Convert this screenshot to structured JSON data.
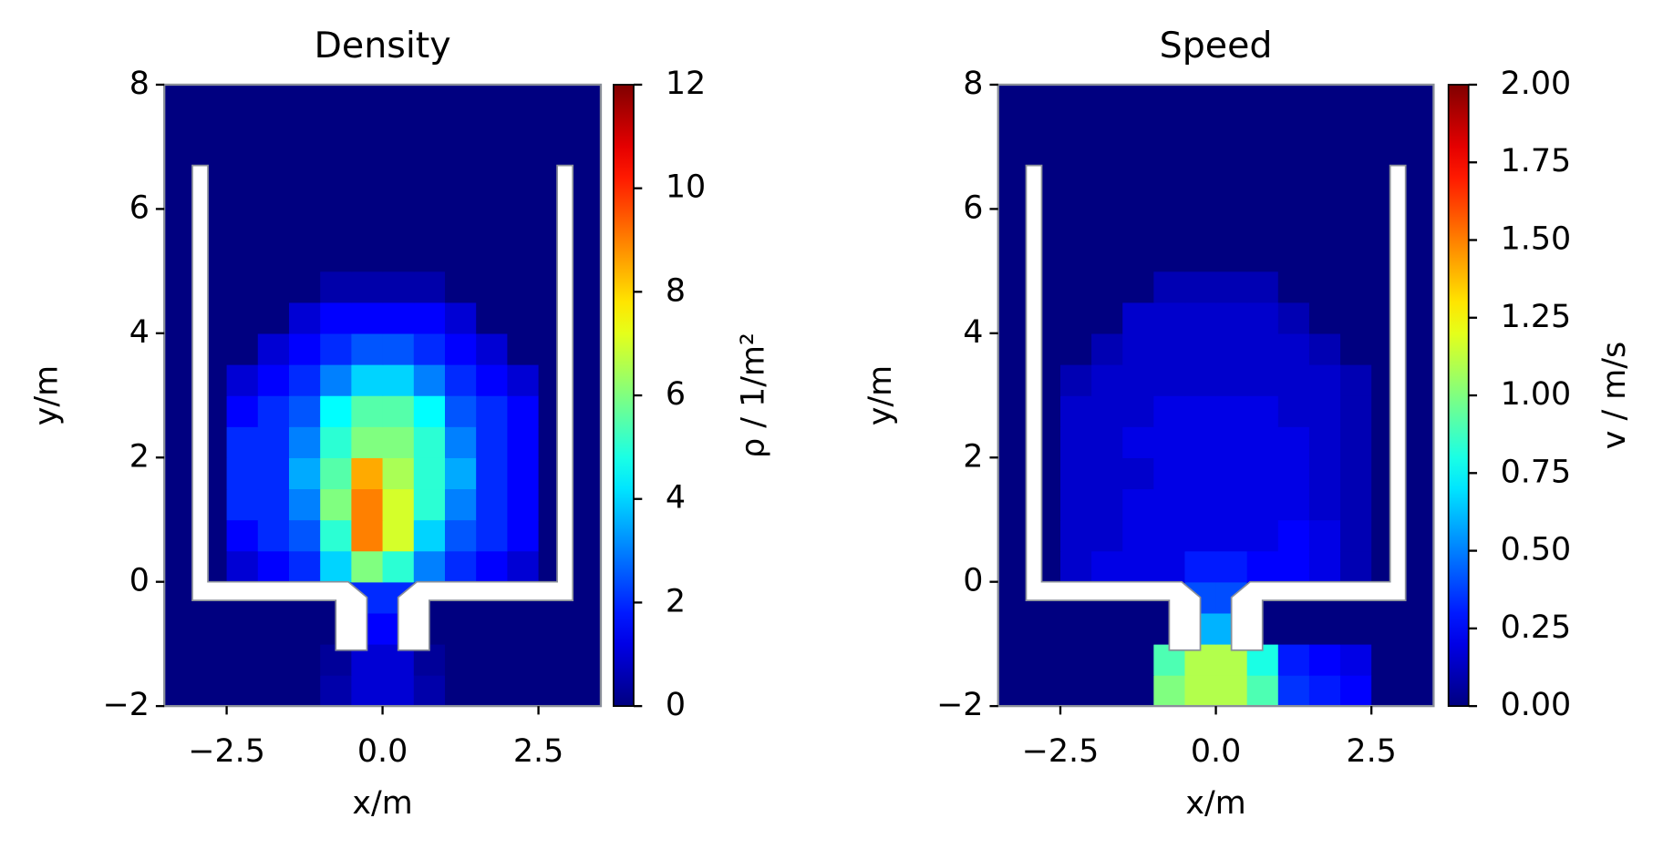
{
  "chart_data": [
    {
      "type": "heatmap",
      "title": "Density",
      "xlabel": "x/m",
      "ylabel": "y/m",
      "colorbar_label": "ρ / 1/m²",
      "colormap": "jet",
      "clim": [
        0,
        12
      ],
      "cticks": [
        0,
        2,
        4,
        6,
        8,
        10,
        12
      ],
      "xlim": [
        -3.5,
        3.5
      ],
      "ylim": [
        -2,
        8
      ],
      "xticks": [
        {
          "value": -2.5,
          "label": "−2.5"
        },
        {
          "value": 0,
          "label": "0.0"
        },
        {
          "value": 2.5,
          "label": "2.5"
        }
      ],
      "yticks": [
        {
          "value": -2,
          "label": "−2"
        },
        0,
        2,
        4,
        6,
        8
      ],
      "x": [
        -3.25,
        -2.75,
        -2.25,
        -1.75,
        -1.25,
        -0.75,
        -0.25,
        0.25,
        0.75,
        1.25,
        1.75,
        2.25,
        2.75,
        3.25
      ],
      "y": [
        -1.75,
        -1.25,
        -0.75,
        -0.25,
        0.25,
        0.75,
        1.25,
        1.75,
        2.25,
        2.75,
        3.25,
        3.75,
        4.25,
        4.75,
        5.25,
        5.75,
        6.25,
        6.75,
        7.25,
        7.75
      ],
      "z": [
        [
          0,
          0,
          0,
          0,
          0,
          0.5,
          1,
          1,
          0.5,
          0,
          0,
          0,
          0,
          0
        ],
        [
          0,
          0,
          0,
          0,
          0,
          0.3,
          1,
          1,
          0.3,
          0,
          0,
          0,
          0,
          0
        ],
        [
          0,
          0,
          0,
          0,
          0,
          0,
          1.5,
          1.5,
          0,
          0,
          0,
          0,
          0,
          0
        ],
        [
          0,
          0,
          0,
          0,
          0,
          0,
          2,
          2,
          0,
          0,
          0,
          0,
          0,
          0
        ],
        [
          0,
          0,
          1,
          1.5,
          2,
          4,
          6,
          5,
          3,
          2,
          1.5,
          1,
          0,
          0
        ],
        [
          0,
          0,
          1.5,
          2,
          2.5,
          5,
          9,
          7,
          4,
          2.5,
          2,
          1.5,
          0,
          0
        ],
        [
          0,
          0,
          2,
          2,
          3,
          6,
          9,
          7,
          5,
          3,
          2,
          1.5,
          0,
          0
        ],
        [
          0,
          0,
          2,
          2,
          3.5,
          5.5,
          8.5,
          6.5,
          5,
          3.5,
          2,
          1.5,
          0,
          0
        ],
        [
          0,
          0,
          2,
          2,
          3,
          5,
          6,
          6,
          5,
          3,
          2,
          1.5,
          0,
          0
        ],
        [
          0,
          0,
          1.5,
          2,
          2.5,
          4.5,
          5.5,
          5.5,
          4.5,
          2.5,
          2,
          1.5,
          0,
          0
        ],
        [
          0,
          0,
          1,
          1.5,
          2,
          3,
          4,
          4,
          3,
          2,
          1.5,
          1,
          0,
          0
        ],
        [
          0,
          0,
          0,
          1,
          1.5,
          2,
          2.5,
          2.5,
          2,
          1.5,
          1,
          0,
          0,
          0
        ],
        [
          0,
          0,
          0,
          0,
          1,
          1.5,
          1.5,
          1.5,
          1.5,
          1,
          0,
          0,
          0,
          0
        ],
        [
          0,
          0,
          0,
          0,
          0,
          0.5,
          0.5,
          0.5,
          0.5,
          0,
          0,
          0,
          0,
          0
        ],
        [
          0,
          0,
          0,
          0,
          0,
          0,
          0,
          0,
          0,
          0,
          0,
          0,
          0,
          0
        ],
        [
          0,
          0,
          0,
          0,
          0,
          0,
          0,
          0,
          0,
          0,
          0,
          0,
          0,
          0
        ],
        [
          0,
          0,
          0,
          0,
          0,
          0,
          0,
          0,
          0,
          0,
          0,
          0,
          0,
          0
        ],
        [
          0,
          0,
          0,
          0,
          0,
          0,
          0,
          0,
          0,
          0,
          0,
          0,
          0,
          0
        ],
        [
          0,
          0,
          0,
          0,
          0,
          0,
          0,
          0,
          0,
          0,
          0,
          0,
          0,
          0
        ],
        [
          0,
          0,
          0,
          0,
          0,
          0,
          0,
          0,
          0,
          0,
          0,
          0,
          0,
          0
        ]
      ],
      "obstacles": [
        [
          [
            -3.05,
            6.7
          ],
          [
            -2.8,
            6.7
          ],
          [
            -2.8,
            0
          ],
          [
            -0.55,
            0
          ],
          [
            -0.25,
            -0.25
          ],
          [
            -0.25,
            -1.1
          ],
          [
            -0.75,
            -1.1
          ],
          [
            -0.75,
            -0.3
          ],
          [
            -3.05,
            -0.3
          ]
        ],
        [
          [
            3.05,
            6.7
          ],
          [
            2.8,
            6.7
          ],
          [
            2.8,
            0
          ],
          [
            0.55,
            0
          ],
          [
            0.25,
            -0.25
          ],
          [
            0.25,
            -1.1
          ],
          [
            0.75,
            -1.1
          ],
          [
            0.75,
            -0.3
          ],
          [
            3.05,
            -0.3
          ]
        ]
      ]
    },
    {
      "type": "heatmap",
      "title": "Speed",
      "xlabel": "x/m",
      "ylabel": "y/m",
      "colorbar_label": "v / m/s",
      "colormap": "jet",
      "clim": [
        0,
        2
      ],
      "cticks": [
        {
          "value": 0,
          "label": "0.00"
        },
        {
          "value": 0.25,
          "label": "0.25"
        },
        {
          "value": 0.5,
          "label": "0.50"
        },
        {
          "value": 0.75,
          "label": "0.75"
        },
        {
          "value": 1,
          "label": "1.00"
        },
        {
          "value": 1.25,
          "label": "1.25"
        },
        {
          "value": 1.5,
          "label": "1.50"
        },
        {
          "value": 1.75,
          "label": "1.75"
        },
        {
          "value": 2,
          "label": "2.00"
        }
      ],
      "xlim": [
        -3.5,
        3.5
      ],
      "ylim": [
        -2,
        8
      ],
      "xticks": [
        {
          "value": -2.5,
          "label": "−2.5"
        },
        {
          "value": 0,
          "label": "0.0"
        },
        {
          "value": 2.5,
          "label": "2.5"
        }
      ],
      "yticks": [
        {
          "value": -2,
          "label": "−2"
        },
        0,
        2,
        4,
        6,
        8
      ],
      "x": [
        -3.25,
        -2.75,
        -2.25,
        -1.75,
        -1.25,
        -0.75,
        -0.25,
        0.25,
        0.75,
        1.25,
        1.75,
        2.25,
        2.75,
        3.25
      ],
      "y": [
        -1.75,
        -1.25,
        -0.75,
        -0.25,
        0.25,
        0.75,
        1.25,
        1.75,
        2.25,
        2.75,
        3.25,
        3.75,
        4.25,
        4.75,
        5.25,
        5.75,
        6.25,
        6.75,
        7.25,
        7.75
      ],
      "z": [
        [
          0,
          0,
          0,
          0,
          0,
          1.0,
          1.1,
          1.1,
          0.9,
          0.35,
          0.3,
          0.25,
          0,
          0
        ],
        [
          0,
          0,
          0,
          0,
          0,
          0.9,
          1.1,
          1.1,
          0.8,
          0.3,
          0.25,
          0.2,
          0,
          0
        ],
        [
          0,
          0,
          0,
          0,
          0,
          0,
          0.6,
          0.6,
          0,
          0,
          0,
          0,
          0,
          0
        ],
        [
          0,
          0,
          0,
          0,
          0,
          0,
          0.4,
          0.4,
          0,
          0,
          0,
          0,
          0,
          0
        ],
        [
          0,
          0,
          0.15,
          0.2,
          0.2,
          0.2,
          0.3,
          0.3,
          0.25,
          0.25,
          0.2,
          0.1,
          0,
          0
        ],
        [
          0,
          0,
          0.15,
          0.15,
          0.2,
          0.2,
          0.2,
          0.2,
          0.2,
          0.25,
          0.2,
          0.1,
          0,
          0
        ],
        [
          0,
          0,
          0.15,
          0.15,
          0.2,
          0.2,
          0.2,
          0.2,
          0.2,
          0.2,
          0.15,
          0.1,
          0,
          0
        ],
        [
          0,
          0,
          0.15,
          0.15,
          0.15,
          0.2,
          0.2,
          0.2,
          0.2,
          0.2,
          0.15,
          0.1,
          0,
          0
        ],
        [
          0,
          0,
          0.15,
          0.15,
          0.2,
          0.2,
          0.2,
          0.2,
          0.2,
          0.2,
          0.15,
          0.1,
          0,
          0
        ],
        [
          0,
          0,
          0.15,
          0.15,
          0.15,
          0.2,
          0.2,
          0.2,
          0.2,
          0.15,
          0.15,
          0.1,
          0,
          0
        ],
        [
          0,
          0,
          0.1,
          0.15,
          0.15,
          0.15,
          0.15,
          0.15,
          0.15,
          0.15,
          0.15,
          0.1,
          0,
          0
        ],
        [
          0,
          0,
          0,
          0.1,
          0.15,
          0.15,
          0.15,
          0.15,
          0.15,
          0.15,
          0.1,
          0,
          0,
          0
        ],
        [
          0,
          0,
          0,
          0,
          0.15,
          0.15,
          0.15,
          0.15,
          0.15,
          0.1,
          0,
          0,
          0,
          0
        ],
        [
          0,
          0,
          0,
          0,
          0,
          0.1,
          0.1,
          0.1,
          0.1,
          0,
          0,
          0,
          0,
          0
        ],
        [
          0,
          0,
          0,
          0,
          0,
          0,
          0,
          0,
          0,
          0,
          0,
          0,
          0,
          0
        ],
        [
          0,
          0,
          0,
          0,
          0,
          0,
          0,
          0,
          0,
          0,
          0,
          0,
          0,
          0
        ],
        [
          0,
          0,
          0,
          0,
          0,
          0,
          0,
          0,
          0,
          0,
          0,
          0,
          0,
          0
        ],
        [
          0,
          0,
          0,
          0,
          0,
          0,
          0,
          0,
          0,
          0,
          0,
          0,
          0,
          0
        ],
        [
          0,
          0,
          0,
          0,
          0,
          0,
          0,
          0,
          0,
          0,
          0,
          0,
          0,
          0
        ],
        [
          0,
          0,
          0,
          0,
          0,
          0,
          0,
          0,
          0,
          0,
          0,
          0,
          0,
          0
        ]
      ],
      "obstacles": [
        [
          [
            -3.05,
            6.7
          ],
          [
            -2.8,
            6.7
          ],
          [
            -2.8,
            0
          ],
          [
            -0.55,
            0
          ],
          [
            -0.25,
            -0.25
          ],
          [
            -0.25,
            -1.1
          ],
          [
            -0.75,
            -1.1
          ],
          [
            -0.75,
            -0.3
          ],
          [
            -3.05,
            -0.3
          ]
        ],
        [
          [
            3.05,
            6.7
          ],
          [
            2.8,
            6.7
          ],
          [
            2.8,
            0
          ],
          [
            0.55,
            0
          ],
          [
            0.25,
            -0.25
          ],
          [
            0.25,
            -1.1
          ],
          [
            0.75,
            -1.1
          ],
          [
            0.75,
            -0.3
          ],
          [
            3.05,
            -0.3
          ]
        ]
      ]
    }
  ]
}
